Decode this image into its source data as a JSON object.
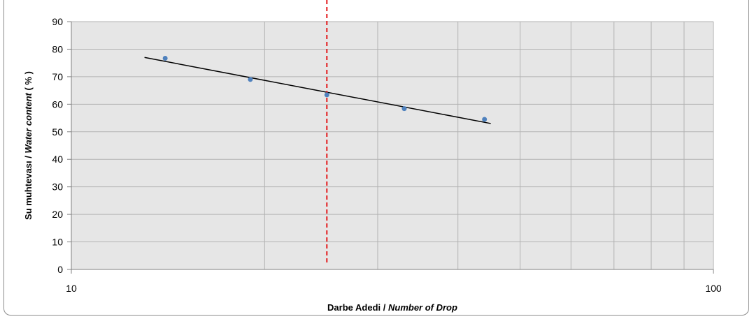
{
  "chart_data": {
    "type": "scatter",
    "title": "",
    "xlabel": {
      "main": "Darbe Adedi / ",
      "italic": "Number of Drop"
    },
    "ylabel": {
      "main": "Su muhtevası / ",
      "italic": "Water content",
      "suffix": " ( % )"
    },
    "x_scale": "log",
    "xlim": [
      10,
      100
    ],
    "ylim": [
      0,
      90
    ],
    "x_tick_labels": [
      "10",
      "100"
    ],
    "y_ticks": [
      0,
      10,
      20,
      30,
      40,
      50,
      60,
      70,
      80,
      90
    ],
    "grid": true,
    "legend": "none",
    "series": [
      {
        "points": [
          {
            "x": 14,
            "y": 76.7
          },
          {
            "x": 19,
            "y": 69.0
          },
          {
            "x": 25,
            "y": 63.4
          },
          {
            "x": 33,
            "y": 58.4
          },
          {
            "x": 44,
            "y": 54.5
          }
        ]
      }
    ],
    "trendline": {
      "from": {
        "x": 13,
        "y": 77
      },
      "to": {
        "x": 45,
        "y": 53
      },
      "color": "#000000"
    },
    "reference_line": {
      "x": 25,
      "style": "dashed",
      "color": "#e31a1c"
    },
    "plot_background": "#e6e6e6",
    "point_color": "#4f81bd",
    "grid_color": "#b3b3b3"
  }
}
